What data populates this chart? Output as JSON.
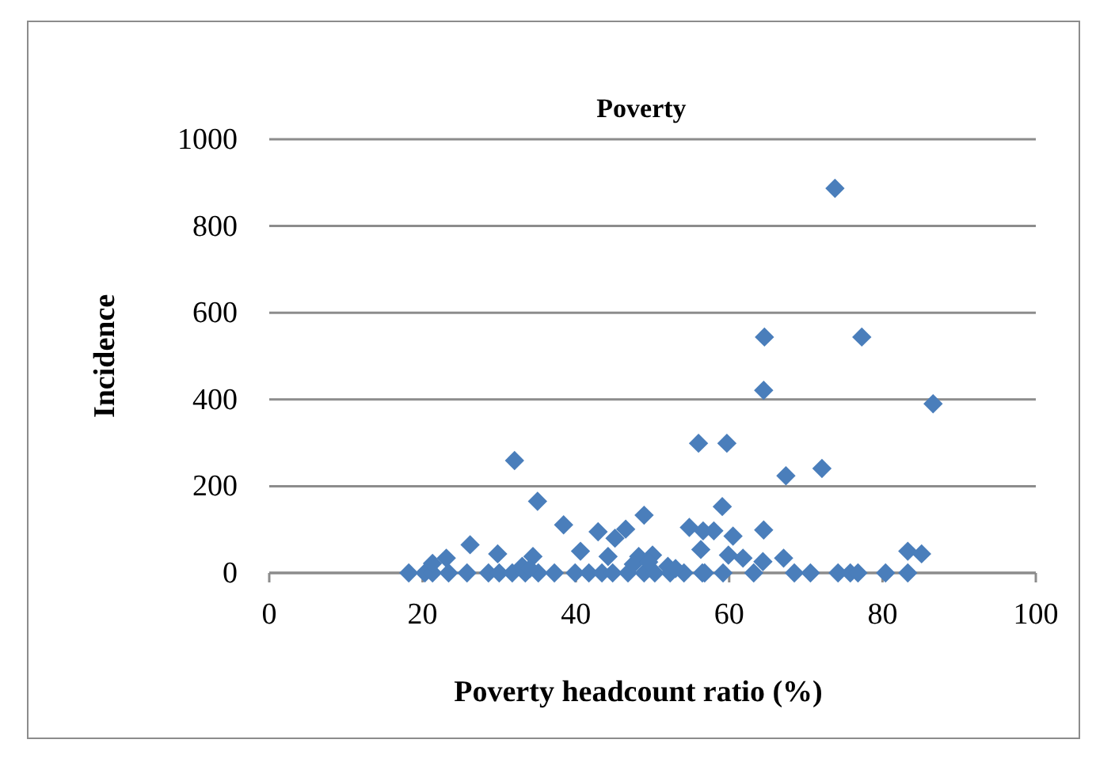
{
  "chart_data": {
    "type": "scatter",
    "title": "Poverty",
    "xlabel": "Poverty headcount ratio (%)",
    "ylabel": "Incidence",
    "xlim": [
      0,
      100
    ],
    "xticks": [
      0,
      20,
      40,
      60,
      80,
      100
    ],
    "ylim": [
      0,
      1000
    ],
    "yticks": [
      0,
      200,
      400,
      600,
      800,
      1000
    ],
    "grid": "y",
    "marker": "diamond",
    "series": [
      {
        "color": "#4a7ebb",
        "x": [
          73.8,
          64.6,
          77.3,
          64.5,
          86.6,
          56,
          59.7,
          67.4,
          72.1,
          32,
          35,
          38.4,
          48.9,
          26.2,
          29.8,
          42.9,
          45.1,
          46.5,
          40.6,
          44.2,
          34.4,
          23.1,
          54.8,
          56.6,
          58,
          59.1,
          56.3,
          48.2,
          50,
          64.5,
          60.5,
          59.9,
          61.8,
          67.1,
          64.4,
          83.3,
          85.1,
          56.8,
          59.2,
          63.2,
          68.5,
          70.6,
          74.2,
          75.8,
          76.8,
          80.4,
          83.3,
          18.2,
          20.3,
          21.3,
          23.4,
          25.8,
          28.6,
          30,
          31.7,
          33.4,
          35.1,
          37.2,
          39.9,
          41.7,
          43.4,
          44.8,
          46.8,
          48.9,
          50.3,
          52.3,
          54.1,
          56.5,
          21.3,
          47.5,
          49.5,
          52,
          53,
          33,
          34
        ],
        "values": [
          887,
          544,
          544,
          421,
          390,
          299,
          299,
          224,
          241,
          259,
          165,
          111,
          133,
          65,
          44,
          95,
          80,
          101,
          50,
          38,
          38,
          34,
          105,
          97,
          97,
          153,
          54,
          38,
          41,
          99,
          85,
          41,
          34,
          34,
          26,
          50,
          44,
          0,
          0,
          0,
          0,
          0,
          0,
          0,
          0,
          0,
          0,
          0,
          0,
          0,
          0,
          0,
          0,
          0,
          0,
          0,
          0,
          0,
          0,
          0,
          0,
          0,
          0,
          0,
          0,
          0,
          0,
          0,
          22,
          20,
          25,
          15,
          10,
          15,
          10
        ]
      }
    ]
  }
}
